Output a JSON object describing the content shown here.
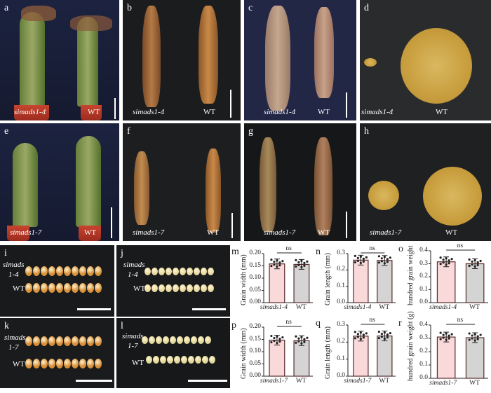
{
  "figure": {
    "panels": {
      "a": {
        "label": "a",
        "left": "simads1-4",
        "right": "WT"
      },
      "b": {
        "label": "b",
        "left": "simads1-4",
        "right": "WT"
      },
      "c": {
        "label": "c",
        "left": "simads1-4",
        "right": "WT"
      },
      "d": {
        "label": "d",
        "left": "simads1-4",
        "right": "WT"
      },
      "e": {
        "label": "e",
        "left": "simads1-7",
        "right": "WT"
      },
      "f": {
        "label": "f",
        "left": "simads1-7",
        "right": "WT"
      },
      "g": {
        "label": "g",
        "left": "simads1-7",
        "right": "WT"
      },
      "h": {
        "label": "h",
        "left": "simads1-7",
        "right": "WT"
      },
      "i": {
        "label": "i",
        "row1a": "simads",
        "row1b": "1-4",
        "row2": "WT"
      },
      "j": {
        "label": "j",
        "row1a": "simads",
        "row1b": "1-4",
        "row2": "WT"
      },
      "k": {
        "label": "k",
        "row1a": "simads",
        "row1b": "1-7",
        "row2": "WT"
      },
      "l": {
        "label": "l",
        "row1a": "simads",
        "row1b": "1-7",
        "row2": "WT"
      }
    },
    "colors": {
      "mutant_bar": "#f9d9d9",
      "wt_bar": "#d4d4d4",
      "bar_edge": "#5a2a2a"
    }
  },
  "chart_data": [
    {
      "panel": "m",
      "type": "bar",
      "ylabel": "Grain width (mm)",
      "categories": [
        "simads1-4",
        "WT"
      ],
      "values": [
        0.158,
        0.156
      ],
      "ylim": [
        0,
        0.2
      ],
      "yticks": [
        "0.00",
        "0.05",
        "0.10",
        "0.15",
        "0.20"
      ],
      "significance": "ns"
    },
    {
      "panel": "n",
      "type": "bar",
      "ylabel": "Grain length (mm)",
      "categories": [
        "simads1-4",
        "WT"
      ],
      "values": [
        0.26,
        0.258
      ],
      "ylim": [
        0,
        0.3
      ],
      "yticks": [
        "0.0",
        "0.1",
        "0.2",
        "0.3"
      ],
      "significance": "ns"
    },
    {
      "panel": "o",
      "type": "bar",
      "ylabel": "hundred grain weight",
      "categories": [
        "simads1-4",
        "WT"
      ],
      "values": [
        0.315,
        0.3
      ],
      "ylim": [
        0,
        0.4
      ],
      "yticks": [
        "0.0",
        "0.1",
        "0.2",
        "0.3",
        "0.4"
      ],
      "significance": "ns"
    },
    {
      "panel": "p",
      "type": "bar",
      "ylabel": "Grain width (mm)",
      "categories": [
        "simads1-7",
        "WT"
      ],
      "values": [
        0.147,
        0.145
      ],
      "ylim": [
        0,
        0.2
      ],
      "yticks": [
        "0.00",
        "0.05",
        "0.10",
        "0.15",
        "0.20"
      ],
      "significance": "ns"
    },
    {
      "panel": "q",
      "type": "bar",
      "ylabel": "Grain length (mm)",
      "categories": [
        "simads1-7",
        "WT"
      ],
      "values": [
        0.235,
        0.236
      ],
      "ylim": [
        0,
        0.3
      ],
      "yticks": [
        "0.0",
        "0.1",
        "0.2",
        "0.3"
      ],
      "significance": "ns"
    },
    {
      "panel": "r",
      "type": "bar",
      "ylabel": "hundred grain weight (g)",
      "categories": [
        "simads1-7",
        "WT"
      ],
      "values": [
        0.31,
        0.305
      ],
      "ylim": [
        0,
        0.4
      ],
      "yticks": [
        "0.0",
        "0.1",
        "0.2",
        "0.3",
        "0.4"
      ],
      "significance": "ns"
    }
  ]
}
